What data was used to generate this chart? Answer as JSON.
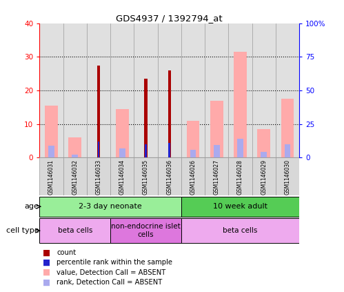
{
  "title": "GDS4937 / 1392794_at",
  "samples": [
    "GSM1146031",
    "GSM1146032",
    "GSM1146033",
    "GSM1146034",
    "GSM1146035",
    "GSM1146036",
    "GSM1146026",
    "GSM1146027",
    "GSM1146028",
    "GSM1146029",
    "GSM1146030"
  ],
  "count_values": [
    0,
    0,
    27.5,
    0,
    23.5,
    26.0,
    0,
    0,
    0,
    0,
    0
  ],
  "rank_values": [
    0,
    0,
    12.0,
    0,
    10.0,
    11.0,
    0,
    0,
    0,
    0,
    0
  ],
  "absent_value": [
    15.5,
    6.0,
    0,
    14.5,
    0,
    0,
    11.0,
    17.0,
    31.5,
    8.5,
    17.5
  ],
  "absent_rank": [
    9.0,
    2.5,
    0,
    7.0,
    0,
    0,
    6.0,
    9.5,
    14.0,
    4.5,
    10.0
  ],
  "count_color": "#aa0000",
  "rank_color": "#2222cc",
  "absent_value_color": "#ffaaaa",
  "absent_rank_color": "#aaaaee",
  "ylim_left": [
    0,
    40
  ],
  "ylim_right": [
    0,
    100
  ],
  "yticks_left": [
    0,
    10,
    20,
    30,
    40
  ],
  "yticks_right": [
    0,
    25,
    50,
    75,
    100
  ],
  "age_groups": [
    {
      "label": "2-3 day neonate",
      "start": 0,
      "end": 6,
      "color": "#99ee99"
    },
    {
      "label": "10 week adult",
      "start": 6,
      "end": 11,
      "color": "#55cc55"
    }
  ],
  "cell_type_groups": [
    {
      "label": "beta cells",
      "start": 0,
      "end": 3,
      "color": "#eeaaee"
    },
    {
      "label": "non-endocrine islet\ncells",
      "start": 3,
      "end": 6,
      "color": "#dd77dd"
    },
    {
      "label": "beta cells",
      "start": 6,
      "end": 11,
      "color": "#eeaaee"
    }
  ],
  "background_color": "#ffffff",
  "age_label": "age",
  "cell_type_label": "cell type"
}
